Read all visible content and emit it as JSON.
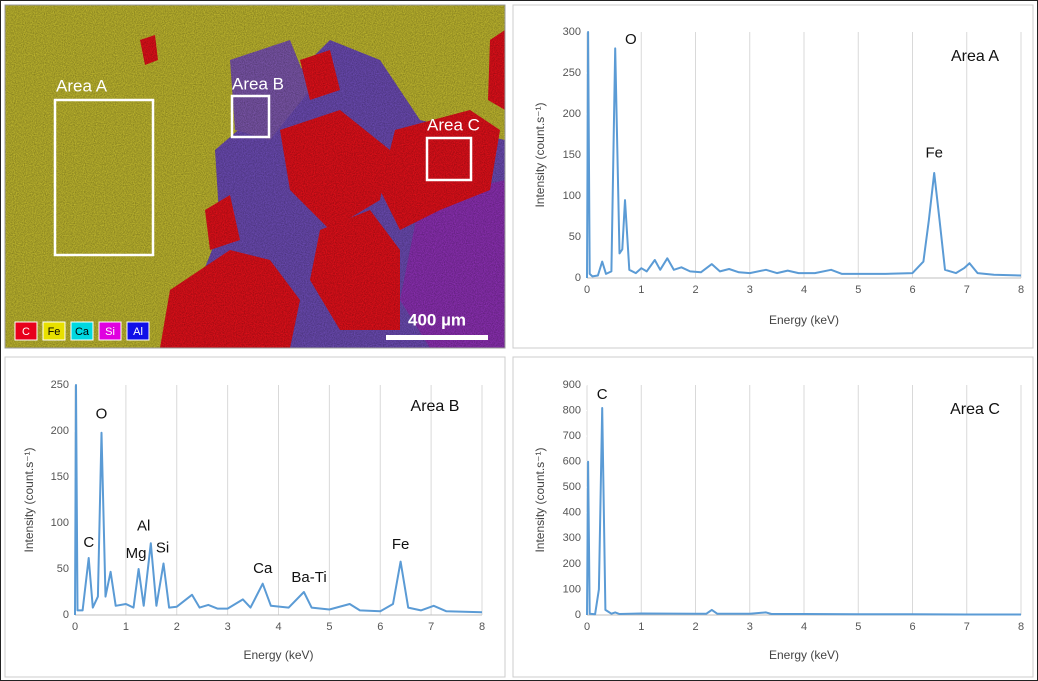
{
  "eds_map": {
    "areas": [
      "Area A",
      "Area B",
      "Area C"
    ],
    "legend": [
      "C",
      "Fe",
      "Ca",
      "Si",
      "Al"
    ],
    "legend_colors": [
      "#e8001c",
      "#e8e000",
      "#00d8e0",
      "#e000e0",
      "#1010e8"
    ],
    "scale_bar": "400 µm"
  },
  "chart_data": [
    {
      "type": "line",
      "title": "Area A",
      "x_label": "Energy (keV)",
      "y_label": "Intensity (count.s⁻¹)",
      "annotations": [
        "O",
        "Fe"
      ],
      "color": "#5b9bd5",
      "grid": true,
      "x": [
        0,
        0.02,
        0.05,
        0.1,
        0.2,
        0.28,
        0.35,
        0.45,
        0.52,
        0.6,
        0.65,
        0.7,
        0.78,
        0.9,
        1.0,
        1.1,
        1.25,
        1.35,
        1.48,
        1.6,
        1.74,
        1.9,
        2.1,
        2.3,
        2.45,
        2.62,
        2.8,
        3.0,
        3.3,
        3.5,
        3.7,
        3.9,
        4.2,
        4.5,
        4.7,
        5.0,
        5.5,
        6.0,
        6.2,
        6.3,
        6.4,
        6.5,
        6.6,
        6.8,
        6.95,
        7.05,
        7.2,
        7.5,
        8.0
      ],
      "values": [
        0,
        300,
        5,
        2,
        3,
        20,
        5,
        8,
        280,
        30,
        35,
        95,
        10,
        6,
        12,
        8,
        22,
        10,
        24,
        10,
        13,
        8,
        7,
        17,
        8,
        11,
        7,
        6,
        10,
        6,
        9,
        6,
        6,
        10,
        5,
        5,
        5,
        6,
        20,
        70,
        128,
        70,
        10,
        6,
        12,
        18,
        6,
        4,
        3
      ],
      "xlim": [
        0,
        8
      ],
      "xticks": [
        0,
        1,
        2,
        3,
        4,
        5,
        6,
        7,
        8
      ],
      "ylim": [
        0,
        300
      ],
      "yticks": [
        0,
        50,
        100,
        150,
        200,
        250,
        300
      ]
    },
    {
      "type": "line",
      "title": "Area B",
      "x_label": "Energy (keV)",
      "y_label": "Intensity (count.s⁻¹)",
      "annotations": [
        "O",
        "C",
        "Mg",
        "Al",
        "Si",
        "Ca",
        "Ba-Ti",
        "Fe"
      ],
      "color": "#5b9bd5",
      "grid": true,
      "x": [
        0,
        0.02,
        0.05,
        0.15,
        0.27,
        0.35,
        0.45,
        0.52,
        0.6,
        0.7,
        0.8,
        1.0,
        1.15,
        1.25,
        1.35,
        1.49,
        1.6,
        1.74,
        1.85,
        2.0,
        2.3,
        2.45,
        2.62,
        2.8,
        3.0,
        3.3,
        3.45,
        3.69,
        3.85,
        4.2,
        4.5,
        4.65,
        5.0,
        5.4,
        5.6,
        6.0,
        6.25,
        6.4,
        6.55,
        6.8,
        7.05,
        7.3,
        8.0
      ],
      "values": [
        0,
        250,
        5,
        5,
        62,
        8,
        20,
        198,
        20,
        47,
        10,
        12,
        8,
        50,
        10,
        78,
        10,
        56,
        8,
        9,
        22,
        8,
        11,
        7,
        7,
        17,
        8,
        34,
        10,
        8,
        25,
        8,
        6,
        12,
        5,
        4,
        12,
        58,
        8,
        5,
        10,
        4,
        3
      ],
      "xlim": [
        0,
        8
      ],
      "xticks": [
        0,
        1,
        2,
        3,
        4,
        5,
        6,
        7,
        8
      ],
      "ylim": [
        0,
        250
      ],
      "yticks": [
        0,
        50,
        100,
        150,
        200,
        250
      ]
    },
    {
      "type": "line",
      "title": "Area C",
      "x_label": "Energy (keV)",
      "y_label": "Intensity (count.s⁻¹)",
      "annotations": [
        "C"
      ],
      "color": "#5b9bd5",
      "grid": true,
      "x": [
        0,
        0.02,
        0.05,
        0.15,
        0.22,
        0.28,
        0.34,
        0.45,
        0.52,
        0.6,
        1.0,
        2.0,
        2.2,
        2.3,
        2.4,
        3.0,
        3.3,
        3.4,
        4.0,
        5.0,
        6.0,
        7.0,
        8.0
      ],
      "values": [
        0,
        600,
        5,
        3,
        100,
        810,
        20,
        5,
        10,
        4,
        6,
        5,
        5,
        20,
        5,
        5,
        10,
        4,
        4,
        3,
        3,
        2,
        2
      ],
      "xlim": [
        0,
        8
      ],
      "xticks": [
        0,
        1,
        2,
        3,
        4,
        5,
        6,
        7,
        8
      ],
      "ylim": [
        0,
        900
      ],
      "yticks": [
        0,
        100,
        200,
        300,
        400,
        500,
        600,
        700,
        800,
        900
      ]
    }
  ]
}
